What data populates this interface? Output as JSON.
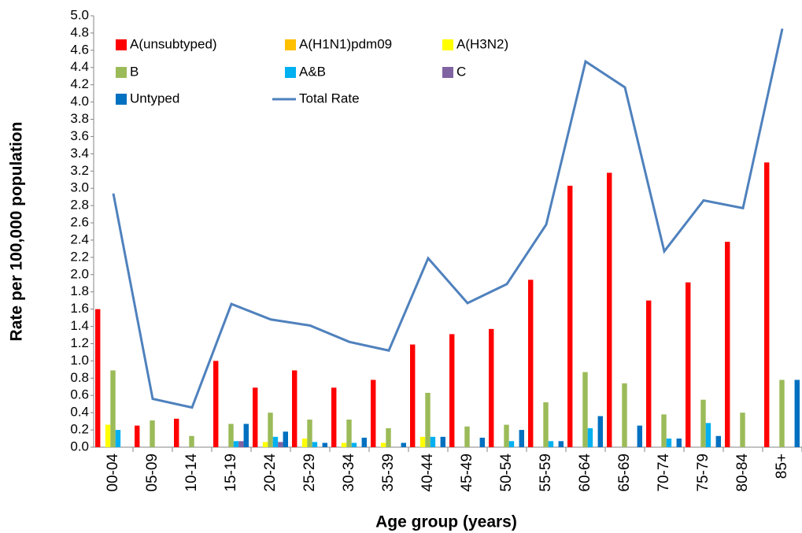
{
  "chart_data": {
    "type": "bar",
    "x_label": "Age group (years)",
    "y_label": "Rate per 100,000 population",
    "categories": [
      "00-04",
      "05-09",
      "10-14",
      "15-19",
      "20-24",
      "25-29",
      "30-34",
      "35-39",
      "40-44",
      "45-49",
      "50-54",
      "55-59",
      "60-64",
      "65-69",
      "70-74",
      "75-79",
      "80-84",
      "85+"
    ],
    "series": [
      {
        "name": "A(unsubtyped)",
        "color": "#ff0000",
        "type": "bar",
        "values": [
          1.6,
          0.25,
          0.33,
          1.0,
          0.69,
          0.89,
          0.69,
          0.78,
          1.19,
          1.31,
          1.37,
          1.94,
          3.03,
          3.18,
          1.7,
          1.91,
          2.38,
          3.3
        ]
      },
      {
        "name": "A(H1N1)pdm09",
        "color": "#ffc000",
        "type": "bar",
        "values": [
          0,
          0,
          0,
          0,
          0,
          0,
          0,
          0,
          0,
          0,
          0,
          0,
          0,
          0,
          0,
          0,
          0,
          0
        ]
      },
      {
        "name": "A(H3N2)",
        "color": "#ffff00",
        "type": "bar",
        "values": [
          0.26,
          0,
          0,
          0,
          0.06,
          0.1,
          0.05,
          0.05,
          0.12,
          0,
          0,
          0,
          0,
          0,
          0,
          0,
          0,
          0
        ]
      },
      {
        "name": "B",
        "color": "#9bbb59",
        "type": "bar",
        "values": [
          0.89,
          0.31,
          0.13,
          0.27,
          0.4,
          0.32,
          0.32,
          0.22,
          0.63,
          0.24,
          0.26,
          0.52,
          0.87,
          0.74,
          0.38,
          0.55,
          0.4,
          0.78
        ]
      },
      {
        "name": "A&B",
        "color": "#00b0f0",
        "type": "bar",
        "values": [
          0.2,
          0,
          0,
          0.07,
          0.12,
          0.06,
          0.05,
          0,
          0.12,
          0,
          0.07,
          0.07,
          0.22,
          0,
          0.1,
          0.28,
          0,
          0
        ]
      },
      {
        "name": "C",
        "color": "#8064a2",
        "type": "bar",
        "values": [
          0,
          0,
          0,
          0.07,
          0.06,
          0,
          0,
          0,
          0,
          0,
          0,
          0,
          0,
          0,
          0,
          0,
          0,
          0
        ]
      },
      {
        "name": "Untyped",
        "color": "#0070c0",
        "type": "bar",
        "values": [
          0,
          0,
          0,
          0.27,
          0.18,
          0.05,
          0.11,
          0.05,
          0.12,
          0.11,
          0.2,
          0.07,
          0.36,
          0.25,
          0.1,
          0.13,
          0,
          0.78
        ]
      },
      {
        "name": "Total Rate",
        "color": "#4f81bd",
        "type": "line",
        "values": [
          2.94,
          0.56,
          0.46,
          1.66,
          1.48,
          1.41,
          1.22,
          1.12,
          2.19,
          1.67,
          1.89,
          2.58,
          4.47,
          4.17,
          2.27,
          2.86,
          2.77,
          4.85
        ]
      }
    ],
    "ylim": [
      0,
      5
    ],
    "yticks": [
      {
        "value": 0,
        "label": "0.0"
      },
      {
        "value": 0.2,
        "label": "0.2"
      },
      {
        "value": 0.4,
        "label": "0.4"
      },
      {
        "value": 0.6,
        "label": "0.6"
      },
      {
        "value": 0.8,
        "label": "0.8"
      },
      {
        "value": 1,
        "label": "1.0"
      },
      {
        "value": 1.2,
        "label": "1.2"
      },
      {
        "value": 1.4,
        "label": "1.4"
      },
      {
        "value": 1.6,
        "label": "1.6"
      },
      {
        "value": 1.8,
        "label": "1.8"
      },
      {
        "value": 2,
        "label": "2.0"
      },
      {
        "value": 2.2,
        "label": "2.2"
      },
      {
        "value": 2.4,
        "label": "2.4"
      },
      {
        "value": 2.6,
        "label": "2.6"
      },
      {
        "value": 2.8,
        "label": "2.8"
      },
      {
        "value": 3,
        "label": "3.0"
      },
      {
        "value": 3.2,
        "label": "3.2"
      },
      {
        "value": 3.4,
        "label": "3.4"
      },
      {
        "value": 3.6,
        "label": "3.6"
      },
      {
        "value": 3.8,
        "label": "3.8"
      },
      {
        "value": 4,
        "label": "4.0"
      },
      {
        "value": 4.2,
        "label": "4.2"
      },
      {
        "value": 4.4,
        "label": "4.4"
      },
      {
        "value": 4.6,
        "label": "4.6"
      },
      {
        "value": 4.8,
        "label": "4.8"
      },
      {
        "value": 5,
        "label": "5.0"
      }
    ],
    "grid": false,
    "legend": "upper left"
  }
}
